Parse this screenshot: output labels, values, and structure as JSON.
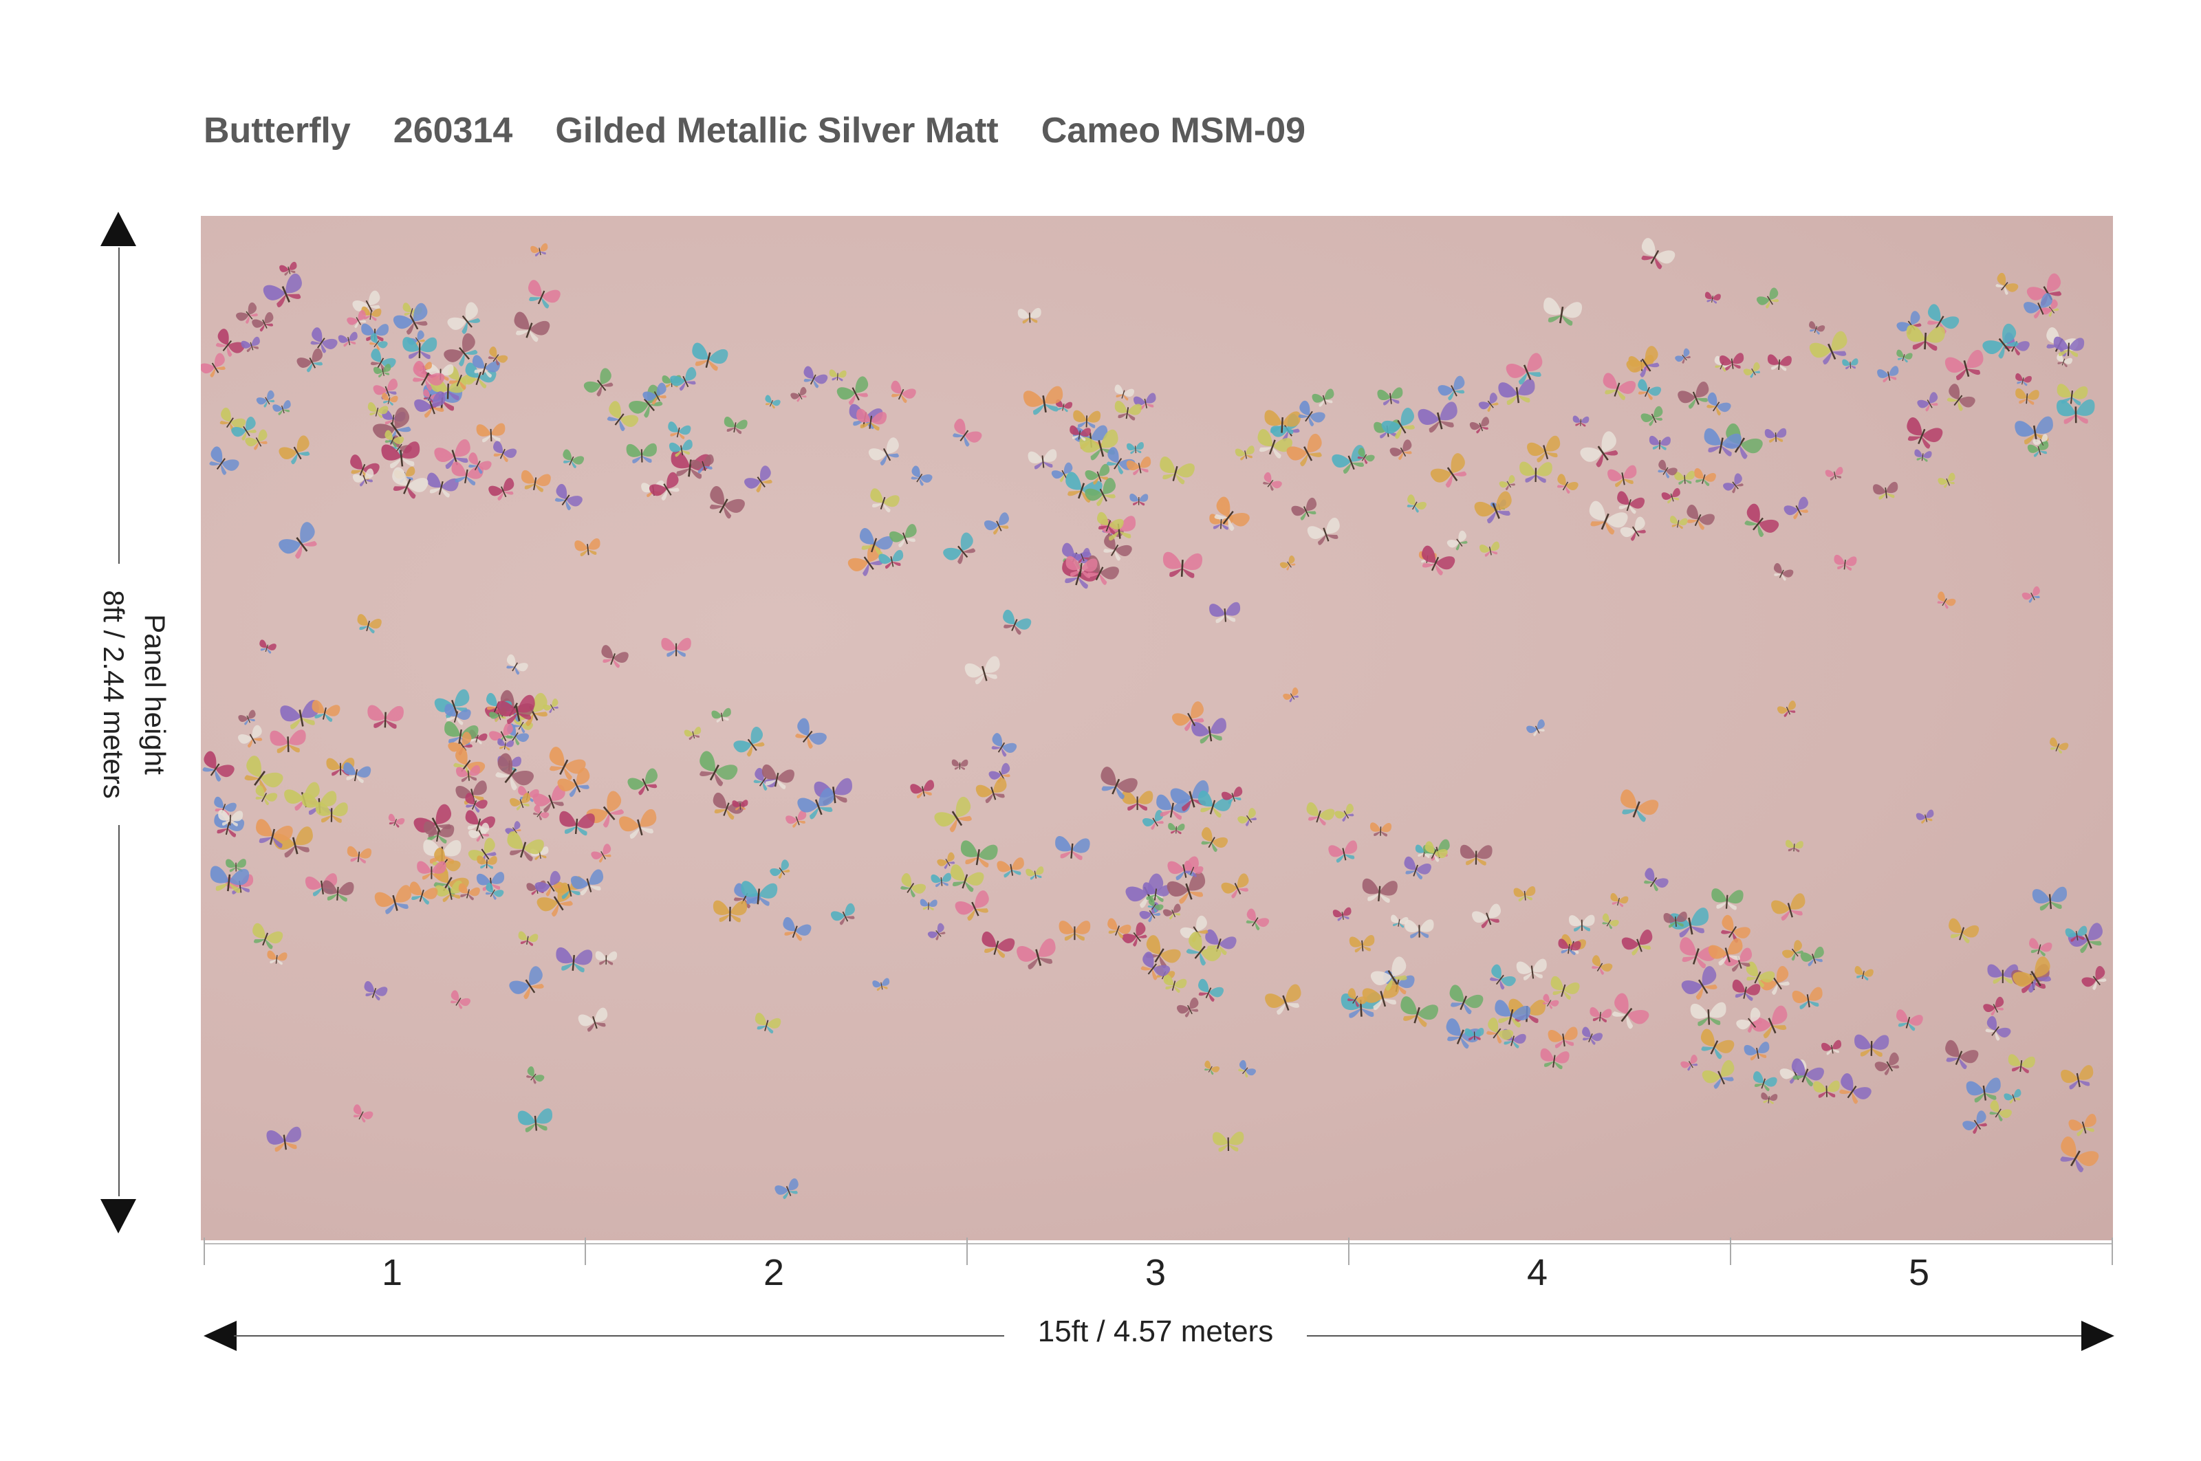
{
  "title": {
    "pattern": "Butterfly",
    "code": "260314",
    "material": "Gilded Metallic Silver Matt",
    "colorway": "Cameo MSM-09"
  },
  "height_label": {
    "line1": "Panel height",
    "line2": "8ft / 2.44 meters"
  },
  "width_label": "15ft  / 4.57 meters",
  "panels": [
    "1",
    "2",
    "3",
    "4",
    "5"
  ],
  "colors": {
    "background": "#d4b6b2",
    "butterflies": [
      "#e07a9a",
      "#6fae6a",
      "#6d8fd0",
      "#d9a54a",
      "#b5406a",
      "#8a6cc0",
      "#e89a5a",
      "#52b0c0",
      "#c8c860",
      "#e8e0d8",
      "#a06070"
    ]
  }
}
